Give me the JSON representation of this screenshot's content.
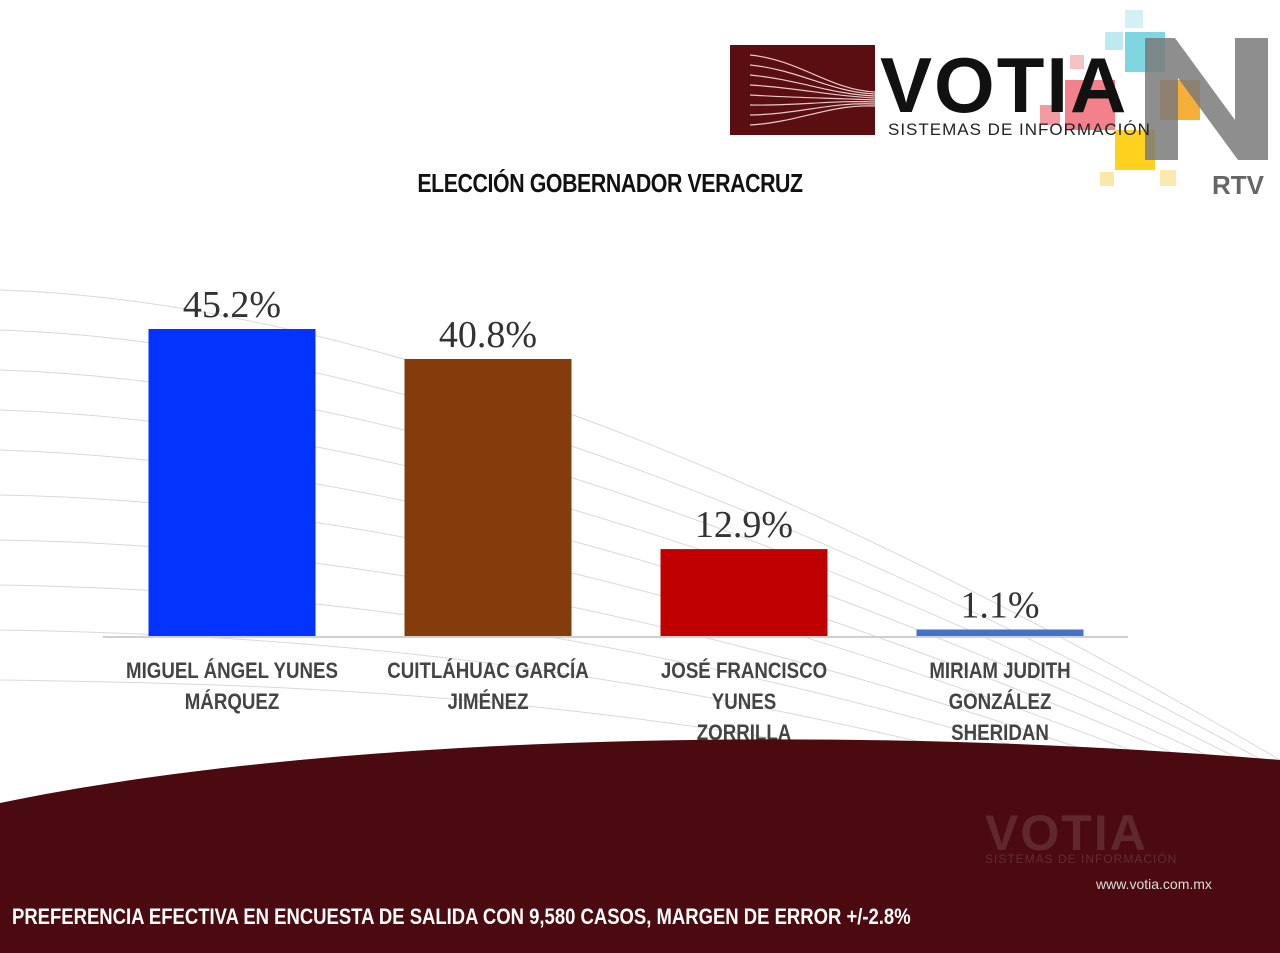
{
  "logo": {
    "brand": "VOTIA",
    "subtitle": "SISTEMAS DE INFORMACIÓN",
    "partner": "RTV"
  },
  "chart_data": {
    "type": "bar",
    "title": "ELECCIÓN GOBERNADOR VERACRUZ",
    "categories": [
      "MIGUEL ÁNGEL YUNES\nMÁRQUEZ",
      "CUITLÁHUAC GARCÍA\nJIMÉNEZ",
      "JOSÉ FRANCISCO YUNES\nZORRILLA",
      "MIRIAM JUDITH GONZÁLEZ\nSHERIDAN"
    ],
    "values": [
      45.2,
      40.8,
      12.9,
      1.1
    ],
    "value_labels": [
      "45.2%",
      "40.8%",
      "12.9%",
      "1.1%"
    ],
    "colors": [
      "#0433ff",
      "#843c0c",
      "#c00000",
      "#4472c4"
    ],
    "ylim": [
      0,
      45.2
    ],
    "grid": false,
    "legend": "none"
  },
  "footer": {
    "note": "PREFERENCIA EFECTIVA EN ENCUESTA DE SALIDA  CON 9,580 CASOS, MARGEN DE ERROR +/-2.8%",
    "url": "www.votia.com.mx",
    "watermark_brand": "VOTIA",
    "watermark_subtitle": "SISTEMAS DE INFORMACIÓN"
  }
}
